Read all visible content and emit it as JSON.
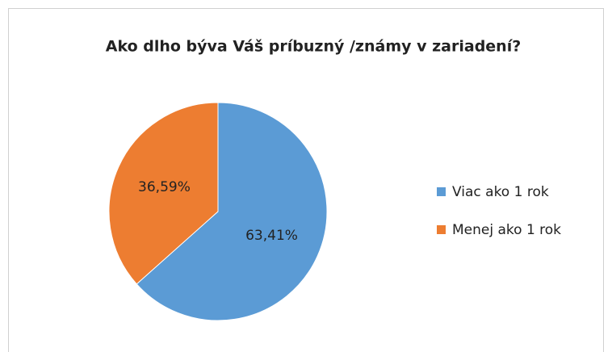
{
  "chart_data": {
    "type": "pie",
    "title": "Ako dlho býva Váš príbuzný /známy v zariadení?",
    "categories": [
      "Viac ako 1 rok",
      "Menej ako 1 rok"
    ],
    "values": [
      63.41,
      36.59
    ],
    "value_labels": [
      "63,41%",
      "36,59%"
    ],
    "colors": [
      "#5b9bd5",
      "#ed7d31"
    ],
    "legend": "right"
  }
}
